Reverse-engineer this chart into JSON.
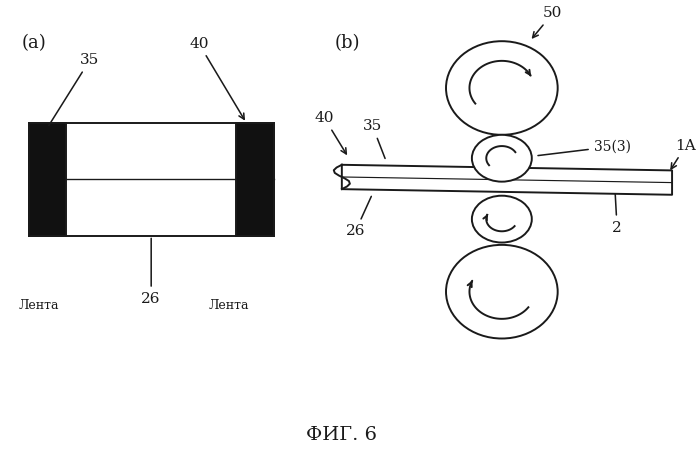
{
  "fig_label": "ФИГ. 6",
  "label_a": "(a)",
  "label_b": "(b)",
  "bg_color": "#ffffff",
  "line_color": "#1a1a1a",
  "black_fill": "#111111"
}
